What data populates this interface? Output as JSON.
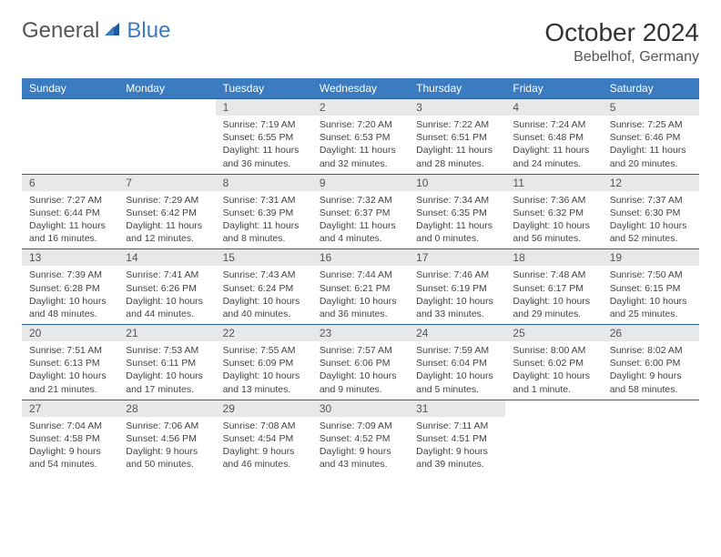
{
  "colors": {
    "header_bg": "#3b7bbf",
    "header_text": "#ffffff",
    "daynum_bg": "#e7e8ea",
    "daynum_text": "#555555",
    "body_text": "#444444",
    "border": "#2f5f97",
    "logo_gray": "#555555",
    "logo_blue": "#3b7bbf"
  },
  "logo": {
    "word1": "General",
    "word2": "Blue"
  },
  "title": "October 2024",
  "location": "Bebelhof, Germany",
  "weekdays": [
    "Sunday",
    "Monday",
    "Tuesday",
    "Wednesday",
    "Thursday",
    "Friday",
    "Saturday"
  ],
  "weeks": [
    [
      null,
      null,
      {
        "n": "1",
        "sunrise": "Sunrise: 7:19 AM",
        "sunset": "Sunset: 6:55 PM",
        "daylight": "Daylight: 11 hours and 36 minutes."
      },
      {
        "n": "2",
        "sunrise": "Sunrise: 7:20 AM",
        "sunset": "Sunset: 6:53 PM",
        "daylight": "Daylight: 11 hours and 32 minutes."
      },
      {
        "n": "3",
        "sunrise": "Sunrise: 7:22 AM",
        "sunset": "Sunset: 6:51 PM",
        "daylight": "Daylight: 11 hours and 28 minutes."
      },
      {
        "n": "4",
        "sunrise": "Sunrise: 7:24 AM",
        "sunset": "Sunset: 6:48 PM",
        "daylight": "Daylight: 11 hours and 24 minutes."
      },
      {
        "n": "5",
        "sunrise": "Sunrise: 7:25 AM",
        "sunset": "Sunset: 6:46 PM",
        "daylight": "Daylight: 11 hours and 20 minutes."
      }
    ],
    [
      {
        "n": "6",
        "sunrise": "Sunrise: 7:27 AM",
        "sunset": "Sunset: 6:44 PM",
        "daylight": "Daylight: 11 hours and 16 minutes."
      },
      {
        "n": "7",
        "sunrise": "Sunrise: 7:29 AM",
        "sunset": "Sunset: 6:42 PM",
        "daylight": "Daylight: 11 hours and 12 minutes."
      },
      {
        "n": "8",
        "sunrise": "Sunrise: 7:31 AM",
        "sunset": "Sunset: 6:39 PM",
        "daylight": "Daylight: 11 hours and 8 minutes."
      },
      {
        "n": "9",
        "sunrise": "Sunrise: 7:32 AM",
        "sunset": "Sunset: 6:37 PM",
        "daylight": "Daylight: 11 hours and 4 minutes."
      },
      {
        "n": "10",
        "sunrise": "Sunrise: 7:34 AM",
        "sunset": "Sunset: 6:35 PM",
        "daylight": "Daylight: 11 hours and 0 minutes."
      },
      {
        "n": "11",
        "sunrise": "Sunrise: 7:36 AM",
        "sunset": "Sunset: 6:32 PM",
        "daylight": "Daylight: 10 hours and 56 minutes."
      },
      {
        "n": "12",
        "sunrise": "Sunrise: 7:37 AM",
        "sunset": "Sunset: 6:30 PM",
        "daylight": "Daylight: 10 hours and 52 minutes."
      }
    ],
    [
      {
        "n": "13",
        "sunrise": "Sunrise: 7:39 AM",
        "sunset": "Sunset: 6:28 PM",
        "daylight": "Daylight: 10 hours and 48 minutes."
      },
      {
        "n": "14",
        "sunrise": "Sunrise: 7:41 AM",
        "sunset": "Sunset: 6:26 PM",
        "daylight": "Daylight: 10 hours and 44 minutes."
      },
      {
        "n": "15",
        "sunrise": "Sunrise: 7:43 AM",
        "sunset": "Sunset: 6:24 PM",
        "daylight": "Daylight: 10 hours and 40 minutes."
      },
      {
        "n": "16",
        "sunrise": "Sunrise: 7:44 AM",
        "sunset": "Sunset: 6:21 PM",
        "daylight": "Daylight: 10 hours and 36 minutes."
      },
      {
        "n": "17",
        "sunrise": "Sunrise: 7:46 AM",
        "sunset": "Sunset: 6:19 PM",
        "daylight": "Daylight: 10 hours and 33 minutes."
      },
      {
        "n": "18",
        "sunrise": "Sunrise: 7:48 AM",
        "sunset": "Sunset: 6:17 PM",
        "daylight": "Daylight: 10 hours and 29 minutes."
      },
      {
        "n": "19",
        "sunrise": "Sunrise: 7:50 AM",
        "sunset": "Sunset: 6:15 PM",
        "daylight": "Daylight: 10 hours and 25 minutes."
      }
    ],
    [
      {
        "n": "20",
        "sunrise": "Sunrise: 7:51 AM",
        "sunset": "Sunset: 6:13 PM",
        "daylight": "Daylight: 10 hours and 21 minutes."
      },
      {
        "n": "21",
        "sunrise": "Sunrise: 7:53 AM",
        "sunset": "Sunset: 6:11 PM",
        "daylight": "Daylight: 10 hours and 17 minutes."
      },
      {
        "n": "22",
        "sunrise": "Sunrise: 7:55 AM",
        "sunset": "Sunset: 6:09 PM",
        "daylight": "Daylight: 10 hours and 13 minutes."
      },
      {
        "n": "23",
        "sunrise": "Sunrise: 7:57 AM",
        "sunset": "Sunset: 6:06 PM",
        "daylight": "Daylight: 10 hours and 9 minutes."
      },
      {
        "n": "24",
        "sunrise": "Sunrise: 7:59 AM",
        "sunset": "Sunset: 6:04 PM",
        "daylight": "Daylight: 10 hours and 5 minutes."
      },
      {
        "n": "25",
        "sunrise": "Sunrise: 8:00 AM",
        "sunset": "Sunset: 6:02 PM",
        "daylight": "Daylight: 10 hours and 1 minute."
      },
      {
        "n": "26",
        "sunrise": "Sunrise: 8:02 AM",
        "sunset": "Sunset: 6:00 PM",
        "daylight": "Daylight: 9 hours and 58 minutes."
      }
    ],
    [
      {
        "n": "27",
        "sunrise": "Sunrise: 7:04 AM",
        "sunset": "Sunset: 4:58 PM",
        "daylight": "Daylight: 9 hours and 54 minutes."
      },
      {
        "n": "28",
        "sunrise": "Sunrise: 7:06 AM",
        "sunset": "Sunset: 4:56 PM",
        "daylight": "Daylight: 9 hours and 50 minutes."
      },
      {
        "n": "29",
        "sunrise": "Sunrise: 7:08 AM",
        "sunset": "Sunset: 4:54 PM",
        "daylight": "Daylight: 9 hours and 46 minutes."
      },
      {
        "n": "30",
        "sunrise": "Sunrise: 7:09 AM",
        "sunset": "Sunset: 4:52 PM",
        "daylight": "Daylight: 9 hours and 43 minutes."
      },
      {
        "n": "31",
        "sunrise": "Sunrise: 7:11 AM",
        "sunset": "Sunset: 4:51 PM",
        "daylight": "Daylight: 9 hours and 39 minutes."
      },
      null,
      null
    ]
  ]
}
